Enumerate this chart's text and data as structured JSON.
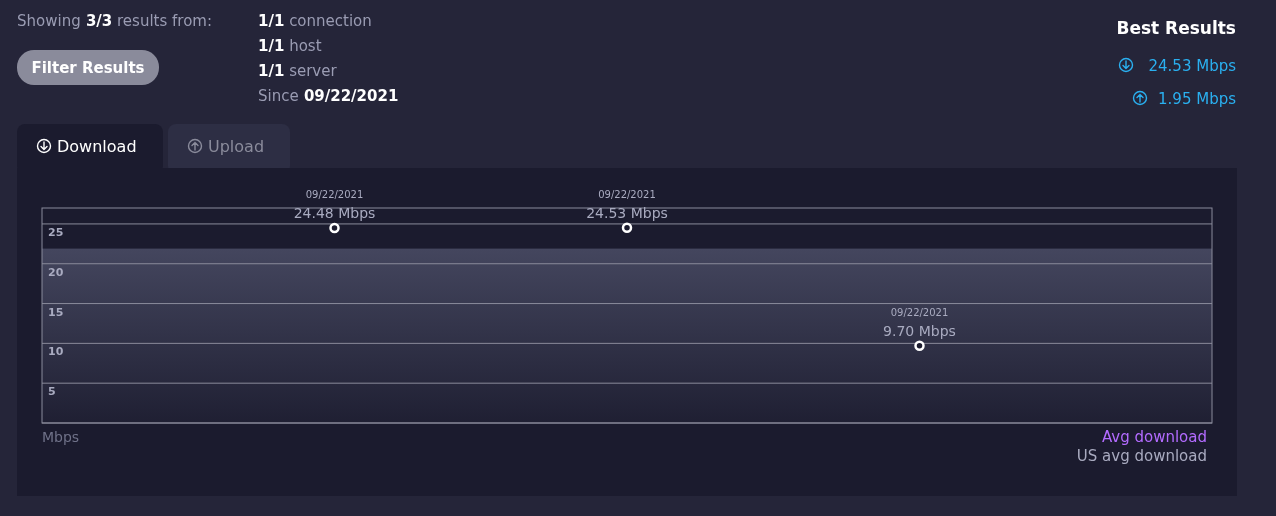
{
  "chart_data": {
    "type": "scatter",
    "categories": [
      "09/22/2021",
      "09/22/2021",
      "09/22/2021"
    ],
    "series": [
      {
        "color": "#ffffff",
        "values": [
          24.48,
          24.53,
          9.7
        ],
        "value_labels": [
          "24.48 Mbps",
          "24.53 Mbps",
          "9.70 Mbps"
        ]
      }
    ],
    "bands": [
      {
        "axis": "y",
        "from": 0,
        "to": 21.9,
        "label": "US avg download",
        "color": "#44465e"
      }
    ],
    "ylim": [
      0,
      27
    ],
    "yticks": [
      {
        "value": 0,
        "label": null
      },
      5,
      10,
      15,
      20,
      25
    ],
    "grid": "y",
    "marker": "circle",
    "annotations": [
      "Showing 3/3 results from:",
      "1/1 connection",
      "1/1 host",
      "1/1 server",
      "Since 09/22/2021",
      "Filter Results",
      "Best Results",
      "24.53 Mbps",
      "1.95 Mbps",
      "Download",
      "Upload",
      "Avg download",
      "Mbps"
    ]
  }
}
